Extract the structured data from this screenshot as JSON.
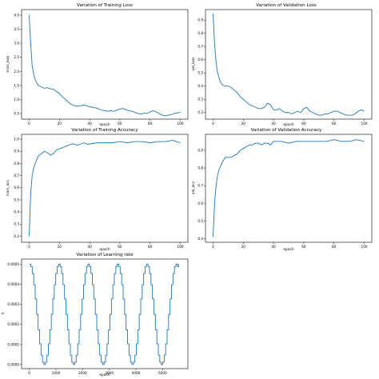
{
  "chart_data": [
    {
      "id": "train-loss",
      "type": "line",
      "title": "Variation of Training Loss",
      "xlabel": "epoch",
      "ylabel": "train_loss",
      "xlim": [
        -5,
        105
      ],
      "ylim": [
        0.3,
        4.2
      ],
      "xticks": [
        0,
        20,
        40,
        60,
        80,
        100
      ],
      "yticks": [
        0.5,
        1.0,
        1.5,
        2.0,
        2.5,
        3.0,
        3.5,
        4.0
      ],
      "ytick_labels": [
        "0.5",
        "1.0",
        "1.5",
        "2.0",
        "2.5",
        "3.0",
        "3.5",
        "4.0"
      ],
      "series": [
        {
          "x": [
            0,
            1,
            2,
            3,
            4,
            5,
            6,
            8,
            10,
            12,
            14,
            16,
            18,
            20,
            22,
            24,
            26,
            28,
            30,
            32,
            34,
            36,
            38,
            40,
            42,
            44,
            46,
            48,
            50,
            52,
            54,
            56,
            58,
            60,
            62,
            64,
            66,
            68,
            70,
            72,
            74,
            76,
            78,
            80,
            82,
            84,
            86,
            88,
            90,
            92,
            94,
            96,
            98,
            100
          ],
          "values": [
            4.0,
            3.0,
            2.2,
            1.9,
            1.7,
            1.6,
            1.5,
            1.45,
            1.4,
            1.42,
            1.38,
            1.37,
            1.28,
            1.22,
            1.1,
            1.0,
            0.9,
            0.82,
            0.78,
            0.76,
            0.78,
            0.8,
            0.78,
            0.74,
            0.72,
            0.7,
            0.66,
            0.62,
            0.6,
            0.58,
            0.6,
            0.58,
            0.62,
            0.66,
            0.68,
            0.64,
            0.6,
            0.58,
            0.54,
            0.5,
            0.48,
            0.52,
            0.5,
            0.56,
            0.6,
            0.56,
            0.5,
            0.44,
            0.42,
            0.44,
            0.46,
            0.5,
            0.52,
            0.55
          ]
        }
      ]
    },
    {
      "id": "val-loss",
      "type": "line",
      "title": "Variation of Validation Loss",
      "xlabel": "epoch",
      "ylabel": "val_loss",
      "xlim": [
        -5,
        105
      ],
      "ylim": [
        0.15,
        0.98
      ],
      "xticks": [
        0,
        20,
        40,
        60,
        80,
        100
      ],
      "yticks": [
        0.2,
        0.3,
        0.4,
        0.5,
        0.6,
        0.7,
        0.8,
        0.9
      ],
      "ytick_labels": [
        "0.2",
        "0.3",
        "0.4",
        "0.5",
        "0.6",
        "0.7",
        "0.8",
        "0.9"
      ],
      "series": [
        {
          "x": [
            0,
            1,
            2,
            3,
            4,
            5,
            6,
            8,
            10,
            12,
            14,
            16,
            18,
            20,
            22,
            24,
            26,
            28,
            30,
            32,
            34,
            36,
            38,
            40,
            42,
            44,
            46,
            48,
            50,
            52,
            54,
            56,
            58,
            60,
            62,
            64,
            66,
            68,
            70,
            72,
            74,
            76,
            78,
            80,
            82,
            84,
            86,
            88,
            90,
            92,
            94,
            96,
            98,
            100
          ],
          "values": [
            0.95,
            0.72,
            0.58,
            0.5,
            0.46,
            0.43,
            0.41,
            0.4,
            0.4,
            0.39,
            0.37,
            0.35,
            0.32,
            0.3,
            0.28,
            0.26,
            0.25,
            0.24,
            0.23,
            0.23,
            0.24,
            0.27,
            0.26,
            0.22,
            0.22,
            0.23,
            0.21,
            0.2,
            0.2,
            0.19,
            0.2,
            0.21,
            0.2,
            0.23,
            0.24,
            0.21,
            0.2,
            0.19,
            0.18,
            0.18,
            0.19,
            0.19,
            0.2,
            0.21,
            0.21,
            0.2,
            0.19,
            0.18,
            0.18,
            0.18,
            0.19,
            0.21,
            0.22,
            0.21
          ]
        }
      ]
    },
    {
      "id": "train-acc",
      "type": "line",
      "title": "Variation of Training Accuracy",
      "xlabel": "epoch",
      "ylabel": "train_acc",
      "xlim": [
        -5,
        105
      ],
      "ylim": [
        0.15,
        1.04
      ],
      "xticks": [
        0,
        20,
        40,
        60,
        80,
        100
      ],
      "yticks": [
        0.2,
        0.3,
        0.4,
        0.5,
        0.6,
        0.7,
        0.8,
        0.9,
        1.0
      ],
      "ytick_labels": [
        "0.2",
        "0.3",
        "0.4",
        "0.5",
        "0.6",
        "0.7",
        "0.8",
        "0.9",
        "1.0"
      ],
      "series": [
        {
          "x": [
            0,
            1,
            2,
            3,
            4,
            5,
            6,
            8,
            10,
            12,
            14,
            16,
            18,
            20,
            22,
            24,
            26,
            28,
            30,
            32,
            34,
            36,
            38,
            40,
            45,
            50,
            55,
            60,
            65,
            70,
            75,
            80,
            85,
            90,
            95,
            100
          ],
          "values": [
            0.2,
            0.55,
            0.7,
            0.76,
            0.8,
            0.83,
            0.86,
            0.88,
            0.9,
            0.89,
            0.87,
            0.88,
            0.91,
            0.92,
            0.93,
            0.94,
            0.95,
            0.96,
            0.96,
            0.95,
            0.96,
            0.97,
            0.96,
            0.96,
            0.97,
            0.97,
            0.97,
            0.98,
            0.97,
            0.98,
            0.98,
            0.97,
            0.98,
            0.98,
            0.99,
            0.97
          ]
        }
      ]
    },
    {
      "id": "val-acc",
      "type": "line",
      "title": "Variation of Validation Accuracy",
      "xlabel": "epoch",
      "ylabel": "val_acc",
      "xlim": [
        -5,
        105
      ],
      "ylim": [
        0.38,
        0.99
      ],
      "xticks": [
        0,
        20,
        40,
        60,
        80,
        100
      ],
      "yticks": [
        0.4,
        0.5,
        0.6,
        0.7,
        0.8,
        0.9
      ],
      "ytick_labels": [
        "0.4",
        "0.5",
        "0.6",
        "0.7",
        "0.8",
        "0.9"
      ],
      "series": [
        {
          "x": [
            0,
            1,
            2,
            3,
            4,
            5,
            6,
            8,
            10,
            12,
            14,
            16,
            18,
            20,
            22,
            24,
            26,
            28,
            30,
            32,
            34,
            36,
            38,
            40,
            45,
            50,
            55,
            60,
            65,
            70,
            75,
            80,
            85,
            90,
            95,
            100
          ],
          "values": [
            0.41,
            0.6,
            0.7,
            0.76,
            0.79,
            0.81,
            0.83,
            0.86,
            0.86,
            0.86,
            0.87,
            0.88,
            0.9,
            0.91,
            0.92,
            0.93,
            0.93,
            0.94,
            0.94,
            0.93,
            0.94,
            0.94,
            0.93,
            0.95,
            0.95,
            0.94,
            0.95,
            0.95,
            0.95,
            0.95,
            0.95,
            0.96,
            0.95,
            0.95,
            0.96,
            0.95
          ]
        }
      ]
    },
    {
      "id": "lr",
      "type": "line",
      "title": "Variation of Learning rate",
      "xlabel": "epoch",
      "ylabel": "lr",
      "xlim": [
        -290,
        5950
      ],
      "ylim": [
        -2e-05,
        0.000525
      ],
      "xticks": [
        0,
        1000,
        2000,
        3000,
        4000,
        5000
      ],
      "yticks": [
        0,
        0.0001,
        0.0002,
        0.0003,
        0.0004,
        0.0005
      ],
      "ytick_labels": [
        "0.0000",
        "0.0001",
        "0.0002",
        "0.0003",
        "0.0004",
        "0.0005"
      ],
      "step": true,
      "series": [
        {
          "x": [
            0,
            55,
            110,
            165,
            220,
            275,
            330,
            385,
            440,
            495,
            550,
            605,
            660,
            715,
            770,
            825,
            880,
            935,
            990,
            1045,
            1100,
            1155,
            1210,
            1265,
            1320,
            1375,
            1430,
            1485,
            1540,
            1595,
            1650,
            1705,
            1760,
            1815,
            1870,
            1925,
            1980,
            2035,
            2090,
            2145,
            2200,
            2255,
            2310,
            2365,
            2420,
            2475,
            2530,
            2585,
            2640,
            2695,
            2750,
            2805,
            2860,
            2915,
            2970,
            3025,
            3080,
            3135,
            3190,
            3245,
            3300,
            3355,
            3410,
            3465,
            3520,
            3575,
            3630,
            3685,
            3740,
            3795,
            3850,
            3905,
            3960,
            4015,
            4070,
            4125,
            4180,
            4235,
            4290,
            4345,
            4400,
            4455,
            4510,
            4565,
            4620,
            4675,
            4730,
            4785,
            4840,
            4895,
            4950,
            5005,
            5060,
            5115,
            5170,
            5225,
            5280,
            5335,
            5390,
            5445,
            5500,
            5555,
            5610
          ],
          "values": [
            0.0005,
            0.000488,
            0.000453,
            0.000397,
            0.000327,
            0.00025,
            0.000173,
            0.000103,
            4.7e-05,
            1.2e-05,
            0.0,
            1.2e-05,
            4.7e-05,
            0.000103,
            0.000173,
            0.00025,
            0.000327,
            0.000397,
            0.000453,
            0.000488,
            0.0005,
            0.000488,
            0.000453,
            0.000397,
            0.000327,
            0.00025,
            0.000173,
            0.000103,
            4.7e-05,
            1.2e-05,
            0.0,
            1.2e-05,
            4.7e-05,
            0.000103,
            0.000173,
            0.00025,
            0.000327,
            0.000397,
            0.000453,
            0.000488,
            0.0005,
            0.000488,
            0.000453,
            0.000397,
            0.000327,
            0.00025,
            0.000173,
            0.000103,
            4.7e-05,
            1.2e-05,
            0.0,
            1.2e-05,
            4.7e-05,
            0.000103,
            0.000173,
            0.00025,
            0.000327,
            0.000397,
            0.000453,
            0.000488,
            0.0005,
            0.000488,
            0.000453,
            0.000397,
            0.000327,
            0.00025,
            0.000173,
            0.000103,
            4.7e-05,
            1.2e-05,
            0.0,
            1.2e-05,
            4.7e-05,
            0.000103,
            0.000173,
            0.00025,
            0.000327,
            0.000397,
            0.000453,
            0.000488,
            0.0005,
            0.000488,
            0.000453,
            0.000397,
            0.000327,
            0.00025,
            0.000173,
            0.000103,
            4.7e-05,
            1.2e-05,
            0.0,
            1.2e-05,
            4.7e-05,
            0.000103,
            0.000173,
            0.00025,
            0.000327,
            0.000397,
            0.000453,
            0.000488,
            0.0005,
            0.000488,
            0.0005
          ]
        }
      ]
    }
  ]
}
